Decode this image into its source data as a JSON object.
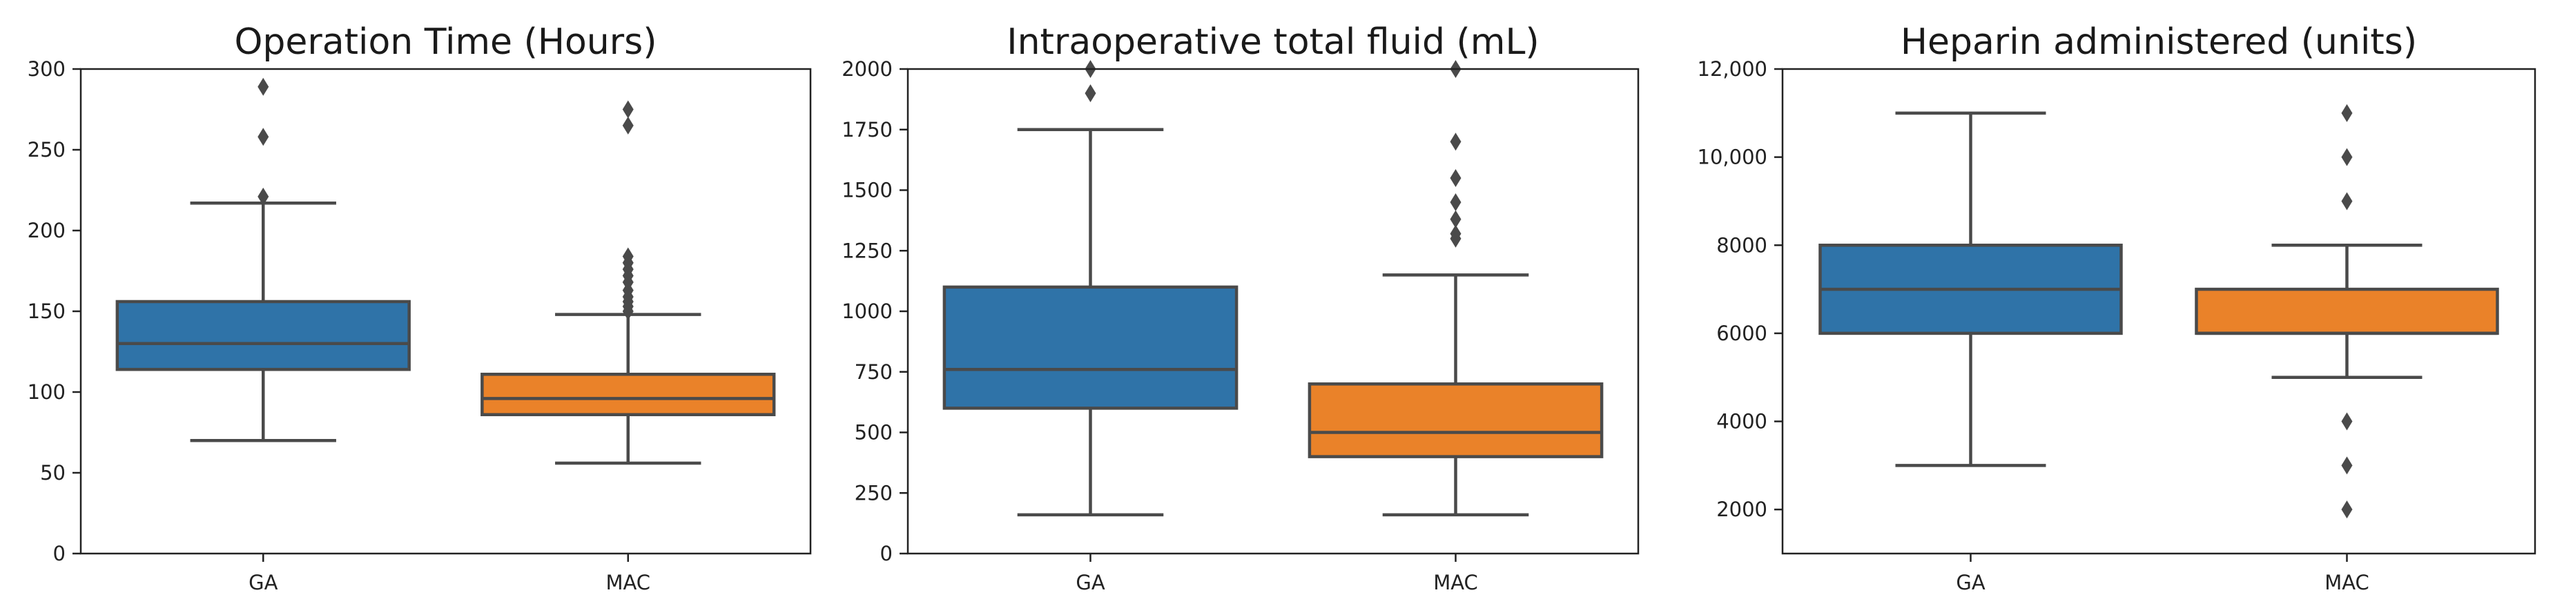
{
  "colors": {
    "GA": "#2f73a8",
    "MAC": "#ea8229",
    "line": "#4a4a4a",
    "axis": "#222222"
  },
  "chart_data": [
    {
      "type": "box",
      "title": "Operation Time (Hours)",
      "xlabel": "",
      "ylabel": "",
      "categories": [
        "GA",
        "MAC"
      ],
      "ylim": [
        0,
        300
      ],
      "yticks": [
        0,
        50,
        100,
        150,
        200,
        250,
        300
      ],
      "ytick_labels": [
        "0",
        "50",
        "100",
        "150",
        "200",
        "250",
        "300"
      ],
      "boxes": [
        {
          "category": "GA",
          "whisker_low": 70,
          "q1": 114,
          "median": 130,
          "q3": 156,
          "whisker_high": 217,
          "outliers": [
            221,
            258,
            289
          ]
        },
        {
          "category": "MAC",
          "whisker_low": 56,
          "q1": 86,
          "median": 96,
          "q3": 111,
          "whisker_high": 148,
          "outliers": [
            150,
            153,
            156,
            159,
            163,
            168,
            172,
            176,
            180,
            184,
            265,
            275
          ]
        }
      ]
    },
    {
      "type": "box",
      "title": "Intraoperative total fluid (mL)",
      "xlabel": "",
      "ylabel": "",
      "categories": [
        "GA",
        "MAC"
      ],
      "ylim": [
        0,
        2000
      ],
      "yticks": [
        0,
        250,
        500,
        750,
        1000,
        1250,
        1500,
        1750,
        2000
      ],
      "ytick_labels": [
        "0",
        "250",
        "500",
        "750",
        "1000",
        "1250",
        "1500",
        "1750",
        "2000"
      ],
      "boxes": [
        {
          "category": "GA",
          "whisker_low": 160,
          "q1": 600,
          "median": 760,
          "q3": 1100,
          "whisker_high": 1750,
          "outliers": [
            1900,
            2000
          ]
        },
        {
          "category": "MAC",
          "whisker_low": 160,
          "q1": 400,
          "median": 500,
          "q3": 700,
          "whisker_high": 1150,
          "outliers": [
            1300,
            1320,
            1380,
            1450,
            1550,
            1700,
            2000
          ]
        }
      ]
    },
    {
      "type": "box",
      "title": "Heparin administered (units)",
      "xlabel": "",
      "ylabel": "",
      "categories": [
        "GA",
        "MAC"
      ],
      "ylim": [
        1000,
        12000
      ],
      "yticks": [
        2000,
        4000,
        6000,
        8000,
        10000,
        12000
      ],
      "ytick_labels": [
        "2000",
        "4000",
        "6000",
        "8000",
        "10,000",
        "12,000"
      ],
      "boxes": [
        {
          "category": "GA",
          "whisker_low": 3000,
          "q1": 6000,
          "median": 7000,
          "q3": 8000,
          "whisker_high": 11000,
          "outliers": []
        },
        {
          "category": "MAC",
          "whisker_low": 5000,
          "q1": 6000,
          "median": 6000,
          "q3": 7000,
          "whisker_high": 8000,
          "outliers": [
            2000,
            3000,
            4000,
            9000,
            10000,
            11000
          ]
        }
      ]
    }
  ]
}
